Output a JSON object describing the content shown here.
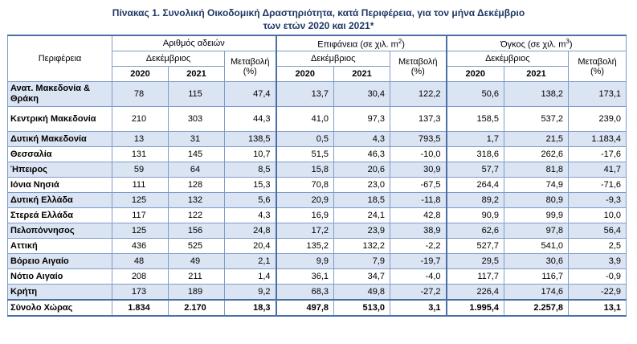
{
  "title_line1": "Πίνακας 1. Συνολική Οικοδομική Δραστηριότητα, κατά Περιφέρεια, για τον μήνα Δεκέμβριο",
  "title_line2": "των ετών 2020 και 2021*",
  "headers": {
    "region": "Περιφέρεια",
    "group1": "Αριθμός αδειών",
    "group2_prefix": "Επιφάνεια (σε χιλ. m",
    "group2_sup": "2",
    "group2_suffix": ")",
    "group3_prefix": "Όγκος (σε χιλ. m",
    "group3_sup": "3",
    "group3_suffix": ")",
    "december": "Δεκέμβριος",
    "change": "Μεταβολή (%)",
    "change2": "Μεταβολή",
    "change_pct": "(%)",
    "y2020": "2020",
    "y2021": "2021"
  },
  "rows": [
    {
      "region": "Ανατ. Μακεδονία & Θράκη",
      "v": [
        "78",
        "115",
        "47,4",
        "13,7",
        "30,4",
        "122,2",
        "50,6",
        "138,2",
        "173,1"
      ],
      "shade": true,
      "tall": true
    },
    {
      "region": "Κεντρική Μακεδονία",
      "v": [
        "210",
        "303",
        "44,3",
        "41,0",
        "97,3",
        "137,3",
        "158,5",
        "537,2",
        "239,0"
      ],
      "shade": false,
      "tall": true
    },
    {
      "region": "Δυτική Μακεδονία",
      "v": [
        "13",
        "31",
        "138,5",
        "0,5",
        "4,3",
        "793,5",
        "1,7",
        "21,5",
        "1.183,4"
      ],
      "shade": true,
      "tall": false
    },
    {
      "region": "Θεσσαλία",
      "v": [
        "131",
        "145",
        "10,7",
        "51,5",
        "46,3",
        "-10,0",
        "318,6",
        "262,6",
        "-17,6"
      ],
      "shade": false,
      "tall": false
    },
    {
      "region": "Ήπειρος",
      "v": [
        "59",
        "64",
        "8,5",
        "15,8",
        "20,6",
        "30,9",
        "57,7",
        "81,8",
        "41,7"
      ],
      "shade": true,
      "tall": false
    },
    {
      "region": "Ιόνια Νησιά",
      "v": [
        "111",
        "128",
        "15,3",
        "70,8",
        "23,0",
        "-67,5",
        "264,4",
        "74,9",
        "-71,6"
      ],
      "shade": false,
      "tall": false
    },
    {
      "region": "Δυτική Ελλάδα",
      "v": [
        "125",
        "132",
        "5,6",
        "20,9",
        "18,5",
        "-11,8",
        "89,2",
        "80,9",
        "-9,3"
      ],
      "shade": true,
      "tall": false
    },
    {
      "region": "Στερεά Ελλάδα",
      "v": [
        "117",
        "122",
        "4,3",
        "16,9",
        "24,1",
        "42,8",
        "90,9",
        "99,9",
        "10,0"
      ],
      "shade": false,
      "tall": false
    },
    {
      "region": "Πελοπόννησος",
      "v": [
        "125",
        "156",
        "24,8",
        "17,2",
        "23,9",
        "38,9",
        "62,6",
        "97,8",
        "56,4"
      ],
      "shade": true,
      "tall": false
    },
    {
      "region": "Αττική",
      "v": [
        "436",
        "525",
        "20,4",
        "135,2",
        "132,2",
        "-2,2",
        "527,7",
        "541,0",
        "2,5"
      ],
      "shade": false,
      "tall": false
    },
    {
      "region": "Βόρειο Αιγαίο",
      "v": [
        "48",
        "49",
        "2,1",
        "9,9",
        "7,9",
        "-19,7",
        "29,5",
        "30,6",
        "3,9"
      ],
      "shade": true,
      "tall": false
    },
    {
      "region": "Νότιο Αιγαίο",
      "v": [
        "208",
        "211",
        "1,4",
        "36,1",
        "34,7",
        "-4,0",
        "117,7",
        "116,7",
        "-0,9"
      ],
      "shade": false,
      "tall": false
    },
    {
      "region": "Κρήτη",
      "v": [
        "173",
        "189",
        "9,2",
        "68,3",
        "49,8",
        "-27,2",
        "226,4",
        "174,6",
        "-22,9"
      ],
      "shade": true,
      "tall": false
    }
  ],
  "total": {
    "region": "Σύνολο Χώρας",
    "v": [
      "1.834",
      "2.170",
      "18,3",
      "497,8",
      "513,0",
      "3,1",
      "1.995,4",
      "2.257,8",
      "13,1"
    ]
  }
}
